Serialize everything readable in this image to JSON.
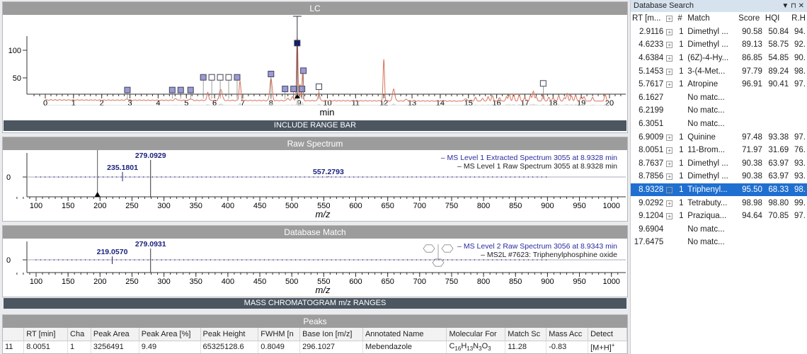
{
  "lc": {
    "title": "LC",
    "xlabel": "min",
    "include_bar": "INCLUDE RANGE BAR",
    "colors": {
      "trace": "#d9735a",
      "marker": "#9a9ad6",
      "marker_selected": "#0a1a6e"
    }
  },
  "chart_data": [
    {
      "type": "line",
      "xlim": [
        -0.5,
        20.5
      ],
      "ylim": [
        -5,
        135
      ],
      "xticks": [
        0,
        1,
        2,
        3,
        4,
        5,
        6,
        7,
        8,
        9,
        10,
        11,
        12,
        13,
        14,
        15,
        16,
        17,
        18,
        19,
        20
      ],
      "yticks": [
        50,
        100
      ],
      "baseline": [
        [
          0,
          10
        ],
        [
          14.6,
          8
        ],
        [
          20,
          8
        ]
      ],
      "peaks": [
        [
          2.91,
          2,
          0.05
        ],
        [
          4.63,
          3,
          0.04
        ],
        [
          5.15,
          3,
          0.04
        ],
        [
          5.76,
          15,
          0.03
        ],
        [
          6.22,
          20,
          0.05
        ],
        [
          6.9,
          35,
          0.03
        ],
        [
          8.0,
          40,
          0.04
        ],
        [
          8.6,
          5,
          0.03
        ],
        [
          8.76,
          8,
          0.03
        ],
        [
          8.93,
          115,
          0.025
        ],
        [
          9.03,
          30,
          0.02
        ],
        [
          9.12,
          50,
          0.02
        ],
        [
          9.7,
          15,
          0.03
        ],
        [
          12.0,
          75,
          0.025
        ],
        [
          12.35,
          22,
          0.04
        ],
        [
          12.8,
          3,
          0.04
        ],
        [
          14.9,
          4,
          0.05
        ],
        [
          15.25,
          7,
          0.03
        ],
        [
          15.5,
          5,
          0.03
        ],
        [
          15.7,
          8,
          0.03
        ],
        [
          15.85,
          10,
          0.03
        ],
        [
          16.1,
          6,
          0.03
        ],
        [
          16.35,
          8,
          0.03
        ],
        [
          16.45,
          12,
          0.03
        ],
        [
          16.6,
          13,
          0.03
        ],
        [
          16.8,
          12,
          0.03
        ],
        [
          17.0,
          7,
          0.03
        ],
        [
          17.2,
          10,
          0.03
        ],
        [
          17.3,
          18,
          0.03
        ],
        [
          17.4,
          8,
          0.03
        ],
        [
          17.65,
          12,
          0.03
        ],
        [
          17.85,
          7,
          0.03
        ],
        [
          18.0,
          6,
          0.03
        ],
        [
          18.2,
          10,
          0.03
        ],
        [
          18.4,
          6,
          0.03
        ],
        [
          18.5,
          14,
          0.03
        ],
        [
          18.65,
          10,
          0.03
        ],
        [
          18.8,
          11,
          0.03
        ],
        [
          19.0,
          9,
          0.03
        ],
        [
          19.1,
          8,
          0.03
        ],
        [
          19.4,
          7,
          0.03
        ],
        [
          19.85,
          12,
          0.03
        ]
      ],
      "markers": [
        {
          "rt": 2.91,
          "filled": true,
          "level": 28
        },
        {
          "rt": 4.5,
          "filled": true,
          "level": 28
        },
        {
          "rt": 4.8,
          "filled": true,
          "level": 28
        },
        {
          "rt": 5.15,
          "filled": true,
          "level": 28
        },
        {
          "rt": 5.6,
          "filled": true,
          "level": 51
        },
        {
          "rt": 5.9,
          "filled": false,
          "level": 51
        },
        {
          "rt": 6.2,
          "filled": false,
          "level": 51
        },
        {
          "rt": 6.5,
          "filled": false,
          "level": 51
        },
        {
          "rt": 6.8,
          "filled": true,
          "level": 51
        },
        {
          "rt": 8.0,
          "filled": true,
          "level": 57
        },
        {
          "rt": 8.5,
          "filled": true,
          "level": 30
        },
        {
          "rt": 8.8,
          "filled": true,
          "level": 30
        },
        {
          "rt": 8.93,
          "filled": true,
          "selected": true,
          "level": 113
        },
        {
          "rt": 9.1,
          "filled": true,
          "level": 30
        },
        {
          "rt": 9.15,
          "filled": true,
          "level": 63
        },
        {
          "rt": 9.7,
          "filled": false,
          "level": 34
        },
        {
          "rt": 17.65,
          "filled": false,
          "level": 40
        }
      ],
      "cursor_rt": 8.93
    },
    {
      "type": "bar",
      "xlim": [
        68,
        1010
      ],
      "xticks": [
        100,
        150,
        200,
        250,
        300,
        350,
        400,
        450,
        500,
        550,
        600,
        650,
        700,
        750,
        800,
        850,
        900,
        950,
        1000
      ],
      "yticks": [
        0
      ],
      "peaks": [
        {
          "mz": 235.1801,
          "rel": 30,
          "label": "235.1801"
        },
        {
          "mz": 279.0929,
          "rel": 100,
          "label": "279.0929"
        },
        {
          "mz": 557.2793,
          "rel": 5,
          "label": "557.2793"
        }
      ],
      "cursor_mz": 196
    },
    {
      "type": "bar",
      "xlim": [
        68,
        1010
      ],
      "xticks": [
        100,
        150,
        200,
        250,
        300,
        350,
        400,
        450,
        500,
        550,
        600,
        650,
        700,
        750,
        800,
        850,
        900,
        950,
        1000
      ],
      "yticks": [
        0
      ],
      "peaks": [
        {
          "mz": 219.057,
          "rel": 30,
          "label": "219.0570"
        },
        {
          "mz": 279.0931,
          "rel": 100,
          "label": "279.0931"
        }
      ]
    }
  ],
  "raw": {
    "title": "Raw Spectrum",
    "xlabel": "m/z",
    "legend": [
      "– MS Level 1 Extracted Spectrum 3055 at 8.9328 min",
      "– MS Level 1 Raw Spectrum 3055 at 8.9328 min"
    ]
  },
  "dbmatch": {
    "title": "Database Match",
    "xlabel": "m/z",
    "legend": [
      "– MS Level 2 Raw Spectrum 3056 at 8.9343 min",
      "– MS2L #7623: Triphenylphosphine oxide"
    ],
    "bar": "MASS CHROMATOGRAM m/z RANGES"
  },
  "peaks": {
    "title": "Peaks",
    "columns": [
      "",
      "RT [min]",
      "Cha",
      "Peak Area",
      "Peak Area [%]",
      "Peak Height",
      "FWHM [n",
      "Base Ion [m/z]",
      "Annotated Name",
      "Molecular For",
      "Match Sc",
      "Mass Acc",
      "Detect"
    ],
    "rows": [
      [
        "11",
        "8.0051",
        "1",
        "3256491",
        "9.49",
        "65325128.6",
        "0.8049",
        "296.1027",
        "Mebendazole",
        "C16H13N3O3",
        "11.28",
        "-0.83",
        "[M+H]+"
      ]
    ]
  },
  "dbsearch": {
    "title": "Database Search",
    "columns": [
      "RT [m...",
      "",
      "#",
      "Match",
      "Score",
      "HQI",
      "R.H"
    ],
    "rows": [
      [
        "2.9116",
        "1",
        "Dimethyl ...",
        "90.58",
        "50.84",
        "94."
      ],
      [
        "4.6233",
        "1",
        "Dimethyl ...",
        "89.13",
        "58.75",
        "92."
      ],
      [
        "4.6384",
        "1",
        "(6Z)-4-Hy...",
        "86.85",
        "54.85",
        "90."
      ],
      [
        "5.1453",
        "1",
        "3-(4-Met...",
        "97.79",
        "89.24",
        "98."
      ],
      [
        "5.7617",
        "1",
        "Atropine",
        "96.91",
        "90.41",
        "97."
      ],
      [
        "6.1627",
        "",
        "No matc...",
        "",
        "",
        ""
      ],
      [
        "6.2199",
        "",
        "No matc...",
        "",
        "",
        ""
      ],
      [
        "6.3051",
        "",
        "No matc...",
        "",
        "",
        ""
      ],
      [
        "6.9009",
        "1",
        "Quinine",
        "97.48",
        "93.38",
        "97."
      ],
      [
        "8.0051",
        "1",
        "11-Brom...",
        "71.97",
        "31.69",
        "76."
      ],
      [
        "8.7637",
        "1",
        "Dimethyl ...",
        "90.38",
        "63.97",
        "93."
      ],
      [
        "8.7856",
        "1",
        "Dimethyl ...",
        "90.38",
        "63.97",
        "93."
      ],
      [
        "8.9328",
        "1",
        "Triphenyl...",
        "95.50",
        "68.33",
        "98."
      ],
      [
        "9.0292",
        "1",
        "Tetrabuty...",
        "98.98",
        "98.80",
        "99."
      ],
      [
        "9.1204",
        "1",
        "Praziqua...",
        "94.64",
        "70.85",
        "97."
      ],
      [
        "9.6904",
        "",
        "No matc...",
        "",
        "",
        ""
      ],
      [
        "17.6475",
        "",
        "No matc...",
        "",
        "",
        ""
      ]
    ],
    "selected_index": 12
  }
}
